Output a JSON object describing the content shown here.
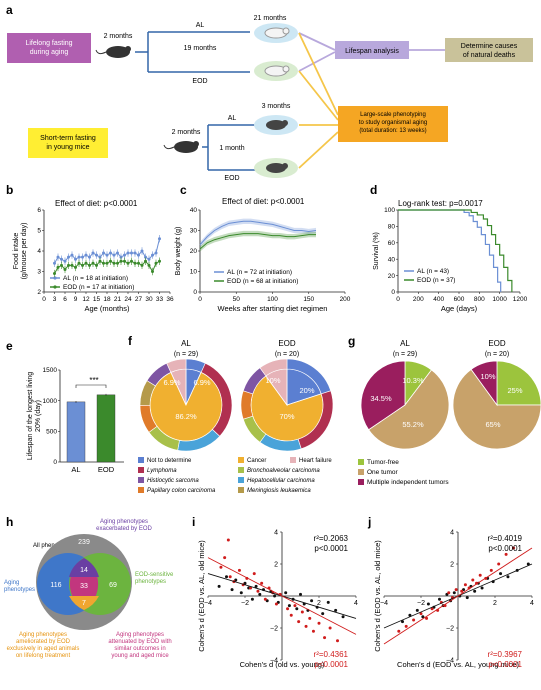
{
  "panels": {
    "a": {
      "label": "a",
      "lifelong_box": "Lifelong fasting during aging",
      "shortterm_box": "Short-term fasting in young mice",
      "age_2_months_top": "2 months",
      "age_2_months_bottom": "2 months",
      "al_top": "AL",
      "eod_top": "EOD",
      "months_21": "21 months",
      "months_19": "19 months",
      "al_bottom": "AL",
      "eod_bottom": "EOD",
      "months_3": "3 months",
      "month_1": "1 month",
      "lifespan_box": "Lifespan analysis",
      "causes_box": "Determine causes of natural deaths",
      "phenotyping_box": "Large-scale phenotyping to study organismal aging (total duration: 13 weeks)",
      "colors": {
        "purple_box": "#b05fb0",
        "yellow_box": "#ffee33",
        "lavender_box": "#b8a8dc",
        "khaki_box": "#c9c29a",
        "orange_box": "#f5a623",
        "line_blue": "#3466a8"
      }
    },
    "b": {
      "label": "b",
      "title": "Effect of diet: p<0.0001"
    },
    "c": {
      "label": "c",
      "title": "Effect of diet: p<0.0001"
    },
    "d": {
      "label": "d",
      "title": "Log-rank test: p=0.0017"
    },
    "e": {
      "label": "e",
      "sig": "***"
    },
    "f": {
      "label": "f",
      "al_title": "AL",
      "al_n": "(n = 29)",
      "eod_title": "EOD",
      "eod_n": "(n = 20)",
      "al_labels": {
        "not_det": "6.9%",
        "heart": "6.9%",
        "cancer": "86.2%"
      },
      "eod_labels": {
        "not_det": "20%",
        "heart": "10%",
        "cancer": "70%"
      },
      "legend": [
        {
          "label": "Not to determine",
          "color": "#5b7fd1"
        },
        {
          "label": "Cancer",
          "color": "#f0b030"
        },
        {
          "label": "Heart failure",
          "color": "#e6b3b8"
        },
        {
          "label": "Lymphoma",
          "color": "#b03050"
        },
        {
          "label": "Bronchoalveolar carcinoma",
          "color": "#a8c04a"
        },
        {
          "label": "Histiocytic sarcoma",
          "color": "#7e55a3"
        },
        {
          "label": "Hepatocellular carcinoma",
          "color": "#4aa3d9"
        },
        {
          "label": "Papillary colon carcinoma",
          "color": "#e07b2a"
        },
        {
          "label": "Meningiosis leukaemica",
          "color": "#b59a4a"
        }
      ]
    },
    "g": {
      "label": "g",
      "al_title": "AL",
      "al_n": "(n = 29)",
      "eod_title": "EOD",
      "eod_n": "(n = 20)",
      "al_labels": {
        "free": "10.3%",
        "one": "55.2%",
        "multi": "34.5%"
      },
      "eod_labels": {
        "free": "25%",
        "one": "65%",
        "multi": "10%"
      },
      "legend": [
        {
          "label": "Tumor-free",
          "color": "#9cc43d"
        },
        {
          "label": "One tumor",
          "color": "#c8a26a"
        },
        {
          "label": "Multiple independent tumors",
          "color": "#9a1e5e"
        }
      ]
    },
    "h": {
      "label": "h",
      "all_phenotypes": "All phenotypes",
      "aging_phenotypes": "Aging phenotypes",
      "exacerbated": "Aging phenotypes exacerbated by EOD",
      "eod_sensitive": "EOD-sensitive phenotypes",
      "ameliorated": "Aging phenotypes ameliorated by EOD exclusively in aged animals on lifelong treatment",
      "attenuated": "Aging phenotypes attenuated by EOD with similar outcomes in young and aged mice",
      "counts": {
        "outer": "239",
        "aging_only": "116",
        "eod_only": "69",
        "top_overlap": "14",
        "center": "33",
        "bottom_overlap": "7"
      },
      "colors": {
        "outer": "#8a8a8a",
        "aging": "#3f77c9",
        "eod": "#6cb43f",
        "top": "#6a3fa3",
        "center": "#c2367e",
        "bottom": "#f0a630"
      }
    },
    "i": {
      "label": "i",
      "r2_black": "r²=0.2063",
      "p_black": "p<0.0001",
      "r2_red": "r²=0.4361",
      "p_red": "p<0.0001"
    },
    "j": {
      "label": "j",
      "r2_black": "r²=0.4019",
      "p_black": "p<0.0001",
      "r2_red": "r²=0.3967",
      "p_red": "p<0.0001"
    }
  },
  "chart_data": [
    {
      "panel": "b",
      "type": "line",
      "xlabel": "Age (months)",
      "ylabel": "Food intake (g/mouse per day)",
      "xlim": [
        0,
        36
      ],
      "ylim": [
        2,
        6
      ],
      "xticks": [
        0,
        3,
        6,
        9,
        12,
        15,
        18,
        21,
        24,
        27,
        30,
        33,
        36
      ],
      "yticks": [
        2,
        3,
        4,
        5,
        6
      ],
      "x": [
        3,
        4,
        5,
        6,
        7,
        8,
        9,
        10,
        11,
        12,
        13,
        14,
        15,
        16,
        17,
        18,
        19,
        20,
        21,
        22,
        23,
        24,
        25,
        26,
        27,
        28,
        29,
        30,
        31,
        32,
        33
      ],
      "series": [
        {
          "name": "AL (n = 18 at initiation)",
          "color": "#6b8fd4",
          "values": [
            3.4,
            3.7,
            3.6,
            3.5,
            3.7,
            3.8,
            3.6,
            3.7,
            3.7,
            3.8,
            3.7,
            3.9,
            3.8,
            3.7,
            3.9,
            3.8,
            3.9,
            3.8,
            3.9,
            3.7,
            3.8,
            3.9,
            3.9,
            3.9,
            3.8,
            4.0,
            3.7,
            3.6,
            3.8,
            3.9,
            4.6
          ]
        },
        {
          "name": "EOD (n = 17 at initiation)",
          "color": "#3b8a2c",
          "values": [
            2.9,
            3.2,
            3.3,
            3.1,
            3.3,
            3.3,
            3.2,
            3.4,
            3.3,
            3.4,
            3.3,
            3.4,
            3.3,
            3.5,
            3.4,
            3.4,
            3.5,
            3.4,
            3.4,
            3.5,
            3.5,
            3.4,
            3.5,
            3.4,
            3.4,
            3.3,
            3.5,
            3.3,
            3.0,
            3.4,
            3.5
          ]
        }
      ]
    },
    {
      "panel": "c",
      "type": "line",
      "xlabel": "Weeks after starting diet regimen",
      "ylabel": "Body weight (g)",
      "xlim": [
        0,
        200
      ],
      "ylim": [
        0,
        40
      ],
      "xticks": [
        0,
        50,
        100,
        150,
        200
      ],
      "yticks": [
        0,
        10,
        20,
        30,
        40
      ],
      "x": [
        0,
        10,
        20,
        30,
        40,
        50,
        60,
        70,
        80,
        90,
        100,
        110,
        120,
        130,
        140,
        150,
        160
      ],
      "series": [
        {
          "name": "AL (n = 72 at initiation)",
          "color": "#6b8fd4",
          "values": [
            23,
            27,
            30,
            32,
            33.5,
            34,
            34.5,
            34.5,
            34,
            33.5,
            33,
            32,
            31,
            30,
            30,
            29.5,
            30
          ]
        },
        {
          "name": "EOD (n = 68 at initiation)",
          "color": "#3b8a2c",
          "values": [
            21,
            24,
            25.5,
            26.5,
            27.5,
            28,
            28.5,
            28.5,
            28.5,
            28,
            27.5,
            27.5,
            27,
            27,
            27.5,
            28,
            28
          ]
        }
      ]
    },
    {
      "panel": "d",
      "type": "line",
      "xlabel": "Age (days)",
      "ylabel": "Survival (%)",
      "xlim": [
        0,
        1200
      ],
      "ylim": [
        0,
        100
      ],
      "xticks": [
        0,
        200,
        400,
        600,
        800,
        1000,
        1200
      ],
      "yticks": [
        0,
        20,
        40,
        60,
        80,
        100
      ],
      "series": [
        {
          "name": "AL (n = 43)",
          "color": "#6b8fd4",
          "x": [
            0,
            600,
            650,
            700,
            740,
            780,
            820,
            860,
            900,
            940,
            980,
            1010
          ],
          "values": [
            100,
            100,
            97,
            93,
            86,
            79,
            70,
            58,
            45,
            30,
            12,
            0
          ]
        },
        {
          "name": "EOD (n = 37)",
          "color": "#3b8a2c",
          "x": [
            0,
            650,
            720,
            780,
            840,
            880,
            920,
            960,
            1000,
            1040,
            1080,
            1120
          ],
          "values": [
            100,
            100,
            97,
            94,
            89,
            81,
            70,
            58,
            45,
            30,
            14,
            0
          ]
        }
      ]
    },
    {
      "panel": "e",
      "type": "bar",
      "ylabel": "Lifespan of the longest living 20% (day)",
      "categories": [
        "AL",
        "EOD"
      ],
      "values": [
        980,
        1095
      ],
      "colors": [
        "#6b8fd4",
        "#3b8a2c"
      ],
      "ylim": [
        0,
        1500
      ],
      "yticks": [
        0,
        500,
        1000,
        1500
      ]
    },
    {
      "panel": "i",
      "type": "scatter",
      "xlabel": "Cohen's d (old vs. young)",
      "ylabel": "Cohen's d (EOD vs. AL, old mice)",
      "xlim": [
        -4,
        4
      ],
      "ylim": [
        -4,
        4
      ],
      "xticks": [
        -4,
        -2,
        2,
        4
      ],
      "yticks": [
        -4,
        -2,
        2,
        4
      ],
      "series": [
        {
          "name": "black",
          "color": "#111111",
          "x": [
            -3.4,
            -3.0,
            -2.7,
            -2.5,
            -2.2,
            -2.0,
            -1.8,
            -1.6,
            -1.4,
            -1.2,
            -1.0,
            -0.8,
            -0.6,
            -0.4,
            -0.2,
            0.2,
            0.4,
            0.6,
            0.8,
            1.0,
            1.2,
            1.4,
            1.6,
            1.9,
            2.2,
            2.5,
            2.9,
            3.3
          ],
          "y": [
            0.6,
            1.2,
            0.4,
            1.0,
            0.2,
            0.8,
            0.5,
            -0.2,
            0.6,
            0.1,
            0.4,
            -0.3,
            0.3,
            0.0,
            -0.4,
            0.2,
            -0.6,
            -0.2,
            -0.8,
            0.1,
            -0.5,
            -0.9,
            -0.3,
            -0.7,
            -1.1,
            -0.4,
            -0.9,
            -1.3
          ]
        },
        {
          "name": "red",
          "color": "#d01c1c",
          "x": [
            -3.3,
            -3.1,
            -2.8,
            -2.6,
            -2.3,
            -2.1,
            -1.9,
            -1.7,
            -1.5,
            -1.3,
            -1.1,
            -0.9,
            -0.7,
            -0.5,
            -0.3,
            -0.1,
            0.3,
            0.5,
            0.7,
            0.9,
            1.1,
            1.3,
            1.5,
            1.7,
            2.0,
            2.3,
            2.6,
            3.0,
            -2.9
          ],
          "y": [
            1.8,
            2.4,
            1.2,
            0.9,
            1.6,
            0.7,
            1.1,
            0.5,
            1.4,
            0.3,
            0.8,
            -0.2,
            0.5,
            0.2,
            -0.5,
            0.1,
            -0.8,
            -1.2,
            -0.6,
            -1.6,
            -1.0,
            -1.9,
            -1.4,
            -2.2,
            -1.7,
            -2.6,
            -2.0,
            -2.8,
            3.5
          ]
        }
      ],
      "fit_lines": [
        {
          "color": "#111111",
          "slope": -0.35,
          "intercept": 0.0
        },
        {
          "color": "#d01c1c",
          "slope": -0.6,
          "intercept": 0.0
        }
      ]
    },
    {
      "panel": "j",
      "type": "scatter",
      "xlabel": "Cohen's d (EOD vs. AL, young mice)",
      "ylabel": "Cohen's d (EOD vs. AL, old mice)",
      "xlim": [
        -4,
        4
      ],
      "ylim": [
        -4,
        4
      ],
      "xticks": [
        -4,
        -2,
        2,
        4
      ],
      "yticks": [
        -4,
        -2,
        2,
        4
      ],
      "series": [
        {
          "name": "black",
          "color": "#111111",
          "x": [
            -3.0,
            -2.6,
            -2.2,
            -1.9,
            -1.6,
            -1.3,
            -1.0,
            -0.8,
            -0.6,
            -0.4,
            -0.2,
            0.1,
            0.3,
            0.5,
            0.7,
            0.9,
            1.1,
            1.3,
            1.6,
            1.9,
            2.3,
            2.7,
            3.2,
            3.8
          ],
          "y": [
            -1.6,
            -1.2,
            -0.9,
            -1.3,
            -0.5,
            -0.7,
            -0.2,
            -0.6,
            0.1,
            -0.3,
            0.2,
            0.0,
            0.4,
            -0.1,
            0.6,
            0.3,
            0.8,
            0.5,
            1.1,
            0.9,
            1.4,
            1.2,
            1.6,
            2.0
          ]
        },
        {
          "name": "red",
          "color": "#d01c1c",
          "x": [
            -3.2,
            -2.8,
            -2.4,
            -2.0,
            -1.7,
            -1.4,
            -1.1,
            -0.9,
            -0.7,
            -0.5,
            -0.3,
            -0.1,
            0.2,
            0.4,
            0.6,
            0.8,
            1.0,
            1.2,
            1.5,
            1.8,
            2.2,
            2.6,
            3.0
          ],
          "y": [
            -2.2,
            -1.9,
            -1.5,
            -1.1,
            -1.4,
            -0.8,
            -0.9,
            -0.4,
            -0.6,
            0.2,
            -0.1,
            0.4,
            0.3,
            0.7,
            0.5,
            1.0,
            0.8,
            1.3,
            1.1,
            1.6,
            2.0,
            2.6,
            3.0
          ]
        }
      ],
      "fit_lines": [
        {
          "color": "#111111",
          "slope": 0.5,
          "intercept": 0.0
        },
        {
          "color": "#d01c1c",
          "slope": 0.75,
          "intercept": 0.0
        }
      ]
    }
  ]
}
